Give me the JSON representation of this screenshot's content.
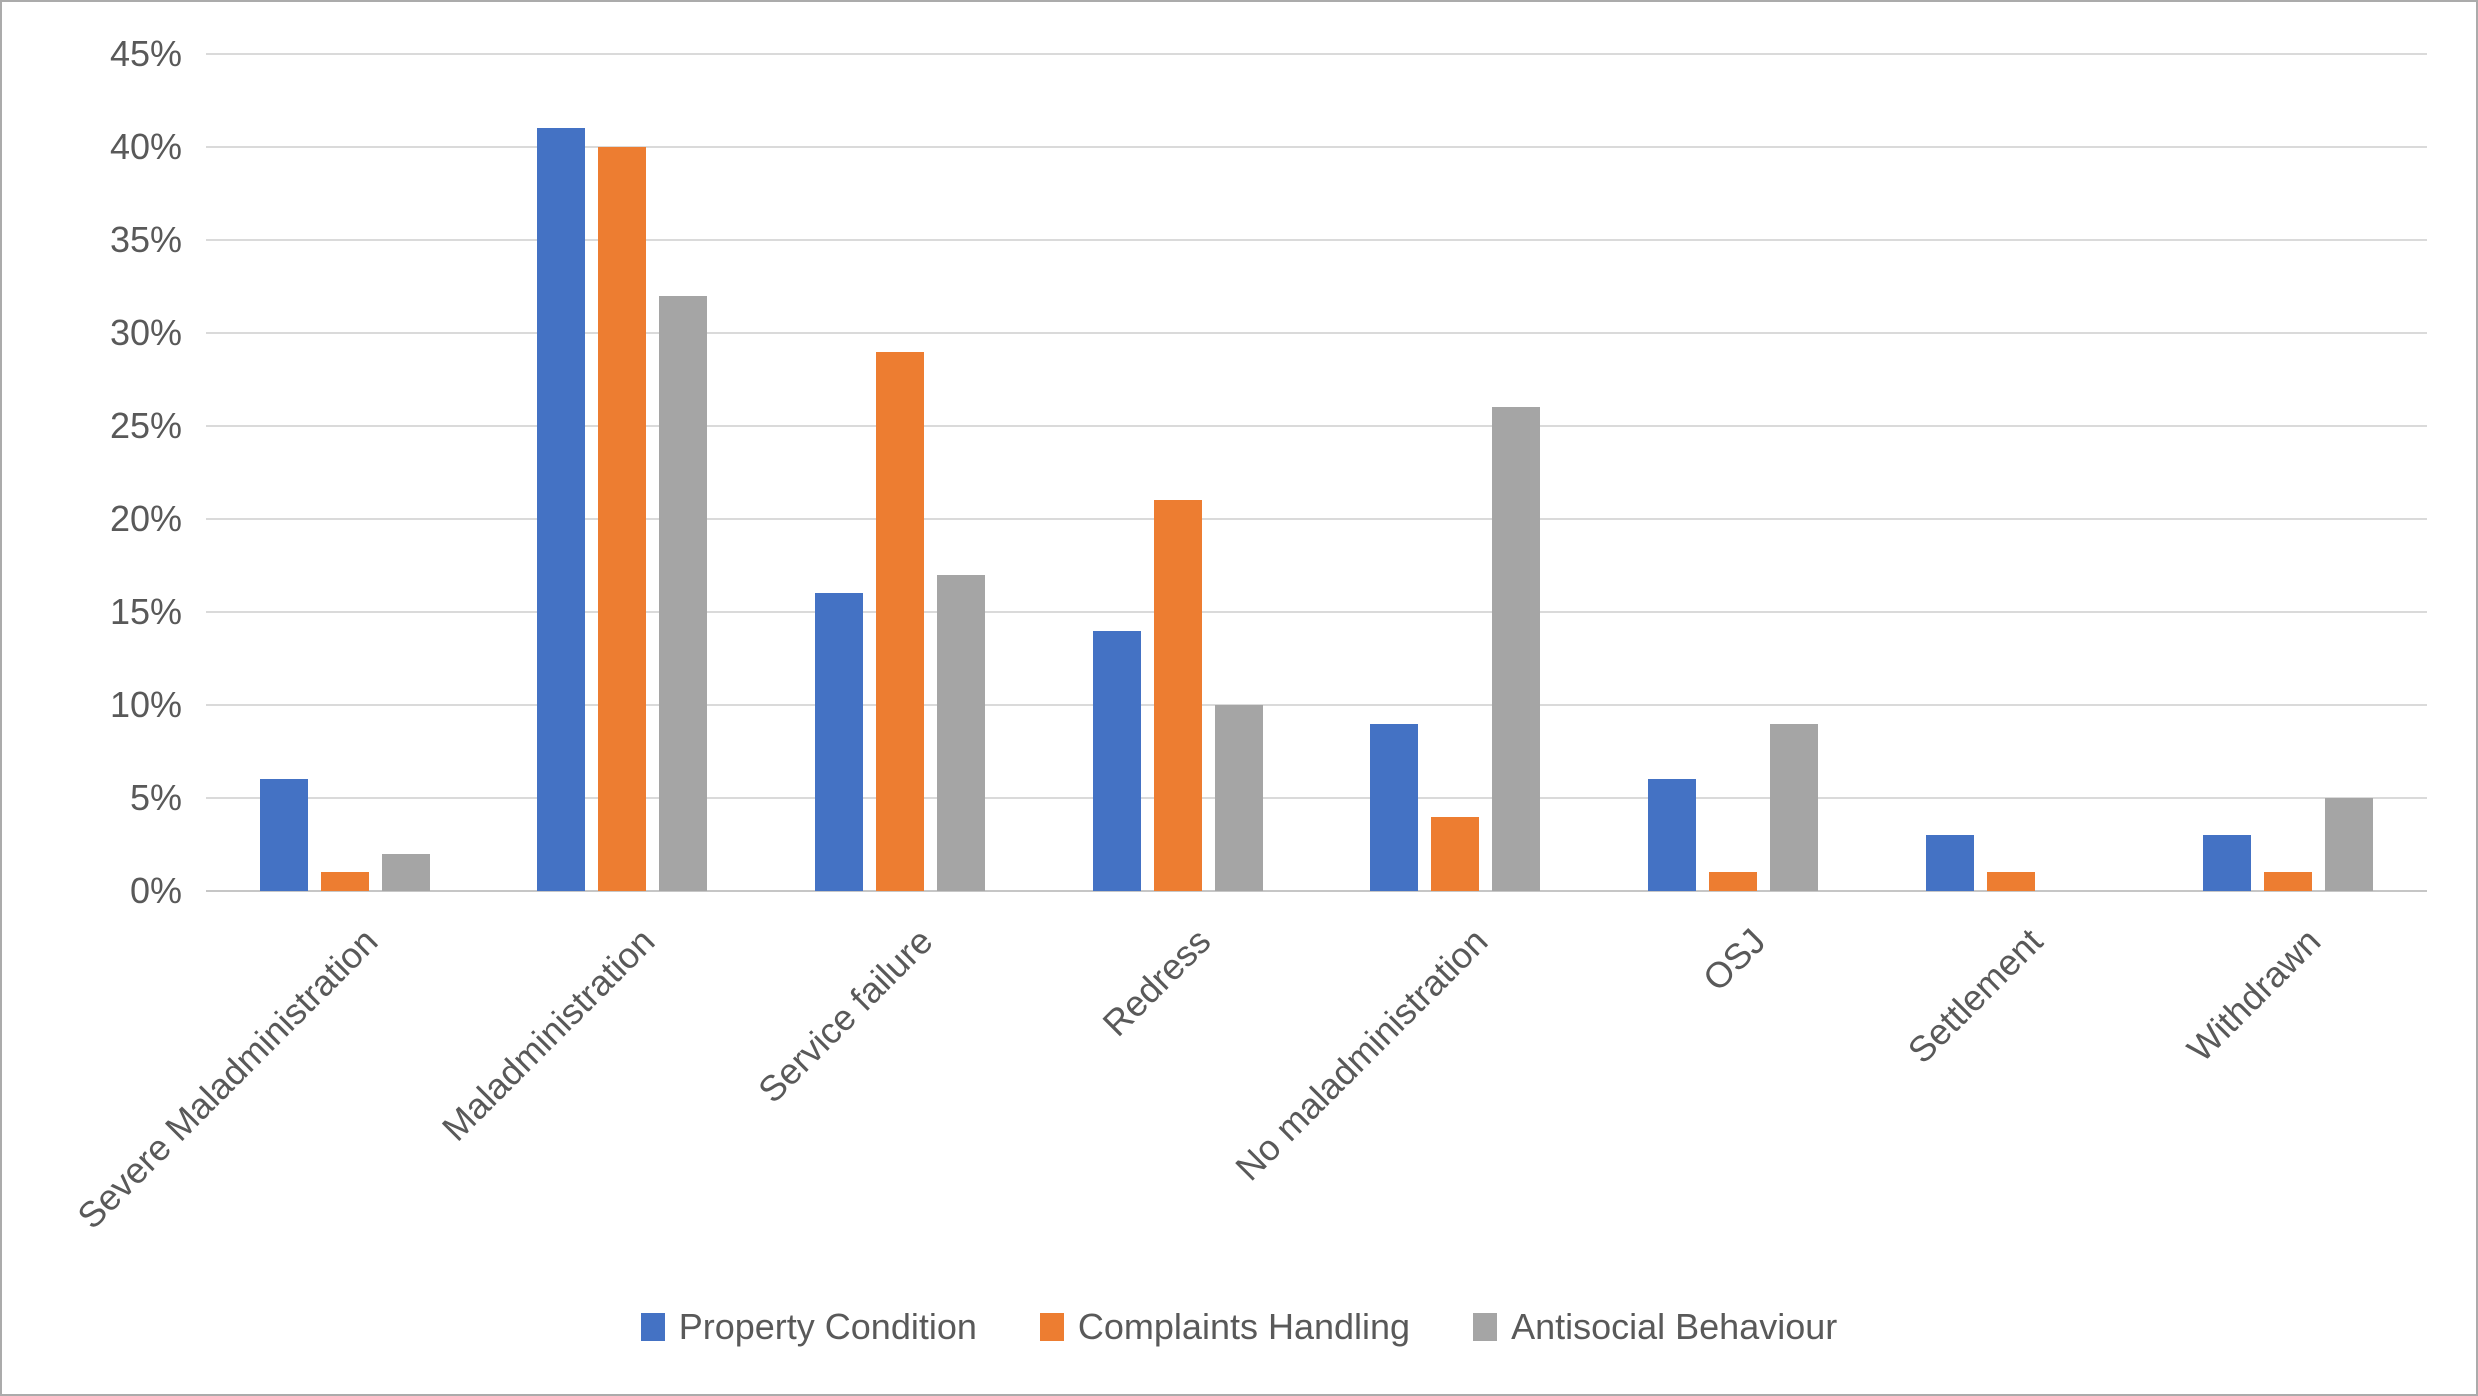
{
  "chart_data": {
    "type": "bar",
    "title": "",
    "categories": [
      "Severe Maladministration",
      "Maladministration",
      "Service failure",
      "Redress",
      "No maladministration",
      "OSJ",
      "Settlement",
      "Withdrawn"
    ],
    "series": [
      {
        "name": "Property Condition",
        "color": "#4472C4",
        "values": [
          6,
          41,
          16,
          14,
          9,
          6,
          3,
          3
        ]
      },
      {
        "name": "Complaints Handling",
        "color": "#ED7D31",
        "values": [
          1,
          40,
          29,
          21,
          4,
          1,
          1,
          1
        ]
      },
      {
        "name": "Antisocial Behaviour",
        "color": "#A5A5A5",
        "values": [
          2,
          32,
          17,
          10,
          26,
          9,
          0,
          5
        ]
      }
    ],
    "xlabel": "",
    "ylabel": "",
    "ylim": [
      0,
      45
    ],
    "y_step": 5,
    "y_tick_labels": [
      "0%",
      "5%",
      "10%",
      "15%",
      "20%",
      "25%",
      "30%",
      "35%",
      "40%",
      "45%"
    ],
    "grid": true,
    "legend_position": "bottom",
    "x_tick_rotation_deg": 45
  },
  "styles": {
    "frame_border_color": "#ababab",
    "background_color": "#ffffff",
    "gridline_color": "#dadada",
    "axis_line_color": "#c6c6c6",
    "tick_label_color": "#595959",
    "legend_text_color": "#595959"
  }
}
